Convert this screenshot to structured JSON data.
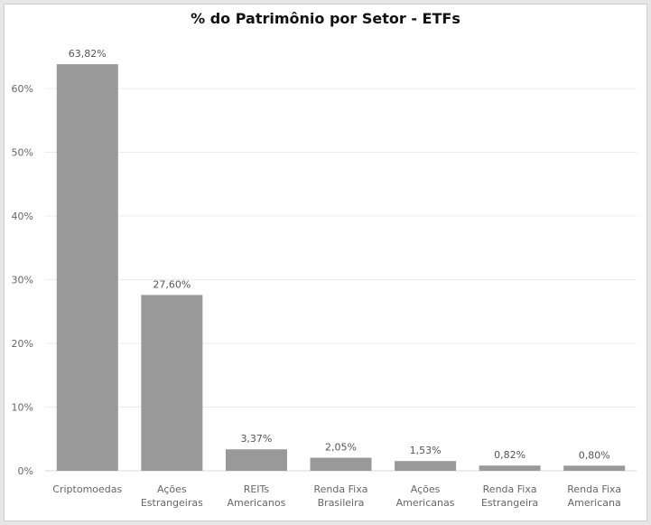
{
  "chart_data": {
    "type": "bar",
    "title": "% do Patrimônio por Setor - ETFs",
    "categories": [
      [
        "Criptomoedas"
      ],
      [
        "Ações",
        "Estrangeiras"
      ],
      [
        "REITs",
        "Americanos"
      ],
      [
        "Renda Fixa",
        "Brasileira"
      ],
      [
        "Ações",
        "Americanas"
      ],
      [
        "Renda Fixa",
        "Estrangeira"
      ],
      [
        "Renda Fixa",
        "Americana"
      ]
    ],
    "values": [
      63.82,
      27.6,
      3.37,
      2.05,
      1.53,
      0.82,
      0.8
    ],
    "data_labels": [
      "63,82%",
      "27,60%",
      "3,37%",
      "2,05%",
      "1,53%",
      "0,82%",
      "0,80%"
    ],
    "y_ticks": [
      0,
      10,
      20,
      30,
      40,
      50,
      60
    ],
    "y_tick_labels": [
      "0%",
      "10%",
      "20%",
      "30%",
      "40%",
      "50%",
      "60%"
    ],
    "ylim": [
      0,
      64
    ],
    "xlabel": "",
    "ylabel": "",
    "grid": true,
    "bar_color": "#999999"
  }
}
